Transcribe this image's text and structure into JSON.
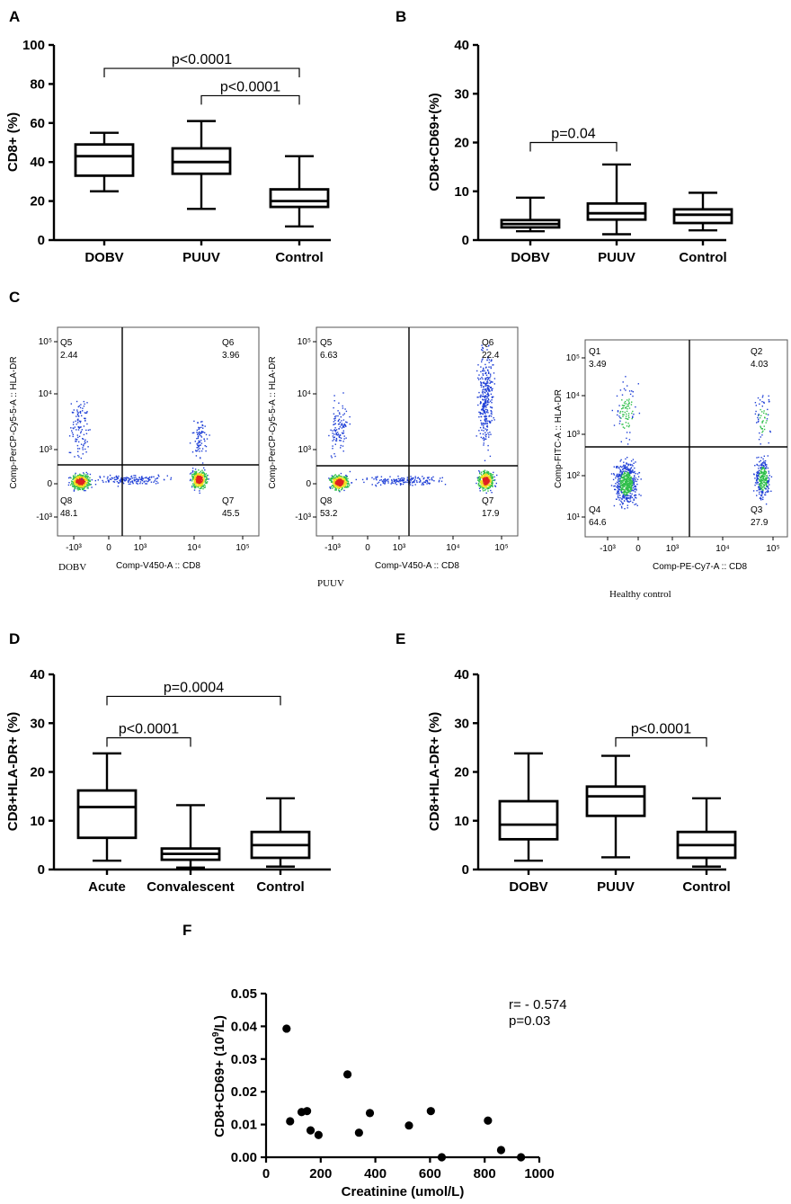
{
  "figure": {
    "panel_letters": [
      "A",
      "B",
      "C",
      "D",
      "E",
      "F"
    ],
    "colors": {
      "ink": "#000000",
      "dot_blue": "#1f3fd6",
      "dot_green": "#2fbf4a",
      "dot_red": "#e02020",
      "dot_yellow": "#f0e020"
    }
  },
  "chart_data": [
    {
      "id": "A",
      "type": "box",
      "ylabel": "CD8+ (%)",
      "ylim": [
        0,
        100
      ],
      "yticks": [
        0,
        20,
        40,
        60,
        80,
        100
      ],
      "categories": [
        "DOBV",
        "PUUV",
        "Control"
      ],
      "boxes": [
        {
          "min": 25,
          "q1": 33,
          "median": 43,
          "q3": 49,
          "max": 55
        },
        {
          "min": 16,
          "q1": 34,
          "median": 40,
          "q3": 47,
          "max": 61
        },
        {
          "min": 7,
          "q1": 17,
          "median": 20,
          "q3": 26,
          "max": 43
        }
      ],
      "comparisons": [
        {
          "from": 0,
          "to": 2,
          "level": 88,
          "label": "p<0.0001"
        },
        {
          "from": 1,
          "to": 2,
          "level": 74,
          "label": "p<0.0001"
        }
      ]
    },
    {
      "id": "B",
      "type": "box",
      "ylabel": "CD8+CD69+(%)",
      "ylim": [
        0,
        40
      ],
      "yticks": [
        0,
        10,
        20,
        30,
        40
      ],
      "categories": [
        "DOBV",
        "PUUV",
        "Control"
      ],
      "boxes": [
        {
          "min": 1.8,
          "q1": 2.6,
          "median": 3.3,
          "q3": 4.1,
          "max": 8.7
        },
        {
          "min": 1.2,
          "q1": 4.2,
          "median": 5.5,
          "q3": 7.5,
          "max": 15.5
        },
        {
          "min": 2.0,
          "q1": 3.5,
          "median": 5.2,
          "q3": 6.3,
          "max": 9.7
        }
      ],
      "comparisons": [
        {
          "from": 0,
          "to": 1,
          "level": 20,
          "label": "p=0.04"
        }
      ]
    },
    {
      "id": "D",
      "type": "box",
      "ylabel": "CD8+HLA-DR+ (%)",
      "ylim": [
        0,
        40
      ],
      "yticks": [
        0,
        10,
        20,
        30,
        40
      ],
      "categories": [
        "Acute",
        "Convalescent",
        "Control"
      ],
      "boxes": [
        {
          "min": 1.8,
          "q1": 6.5,
          "median": 12.8,
          "q3": 16.2,
          "max": 23.8
        },
        {
          "min": 0.4,
          "q1": 2.0,
          "median": 3.2,
          "q3": 4.3,
          "max": 13.2
        },
        {
          "min": 0.6,
          "q1": 2.4,
          "median": 5.0,
          "q3": 7.7,
          "max": 14.6
        }
      ],
      "comparisons": [
        {
          "from": 0,
          "to": 2,
          "level": 35.5,
          "label": "p=0.0004"
        },
        {
          "from": 0,
          "to": 1,
          "level": 27,
          "label": "p<0.0001"
        }
      ]
    },
    {
      "id": "E",
      "type": "box",
      "ylabel": "CD8+HLA-DR+ (%)",
      "ylim": [
        0,
        40
      ],
      "yticks": [
        0,
        10,
        20,
        30,
        40
      ],
      "categories": [
        "DOBV",
        "PUUV",
        "Control"
      ],
      "boxes": [
        {
          "min": 1.8,
          "q1": 6.2,
          "median": 9.2,
          "q3": 14.0,
          "max": 23.8
        },
        {
          "min": 2.5,
          "q1": 11.0,
          "median": 15.0,
          "q3": 17.0,
          "max": 23.3
        },
        {
          "min": 0.6,
          "q1": 2.4,
          "median": 5.0,
          "q3": 7.7,
          "max": 14.6
        }
      ],
      "comparisons": [
        {
          "from": 1,
          "to": 2,
          "level": 27,
          "label": "p<0.0001"
        }
      ]
    },
    {
      "id": "F",
      "type": "scatter",
      "xlabel": "Creatinine (umol/L)",
      "ylabel_main": "CD8+CD69+ (10",
      "ylabel_sup": "9",
      "ylabel_end": "/L)",
      "xlim": [
        0,
        1000
      ],
      "xticks": [
        0,
        200,
        400,
        600,
        800,
        1000
      ],
      "ylim": [
        0,
        0.05
      ],
      "yticks": [
        "0.00",
        "0.01",
        "0.02",
        "0.03",
        "0.04",
        "0.05"
      ],
      "annotation": [
        "r= - 0.574",
        "p=0.03"
      ],
      "points": [
        {
          "x": 75,
          "y": 0.0393
        },
        {
          "x": 88,
          "y": 0.011
        },
        {
          "x": 130,
          "y": 0.0138
        },
        {
          "x": 150,
          "y": 0.0141
        },
        {
          "x": 163,
          "y": 0.0082
        },
        {
          "x": 192,
          "y": 0.0068
        },
        {
          "x": 298,
          "y": 0.0253
        },
        {
          "x": 340,
          "y": 0.0075
        },
        {
          "x": 380,
          "y": 0.0135
        },
        {
          "x": 523,
          "y": 0.0097
        },
        {
          "x": 603,
          "y": 0.0141
        },
        {
          "x": 643,
          "y": 0.0
        },
        {
          "x": 812,
          "y": 0.0112
        },
        {
          "x": 860,
          "y": 0.0022
        },
        {
          "x": 933,
          "y": 0.0
        }
      ]
    },
    {
      "id": "C",
      "type": "flow-cytometry",
      "plots": [
        {
          "sample": "DOBV",
          "xlabel": "Comp-V450-A :: CD8",
          "ylabel": "Comp-PerCP-Cy5-5-A :: HLA-DR",
          "xticks": [
            "-10³",
            "0",
            "10³",
            "10⁴",
            "10⁵"
          ],
          "yticks": [
            "10⁵",
            "10⁴",
            "10³",
            "0",
            "-10³"
          ],
          "quadrants": [
            {
              "name": "Q5",
              "value": "2.44"
            },
            {
              "name": "Q6",
              "value": "3.96"
            },
            {
              "name": "Q8",
              "value": "48.1"
            },
            {
              "name": "Q7",
              "value": "45.5"
            }
          ]
        },
        {
          "sample": "PUUV",
          "xlabel": "Comp-V450-A :: CD8",
          "ylabel": "Comp-PerCP-Cy5-5-A :: HLA-DR",
          "xticks": [
            "-10³",
            "0",
            "10³",
            "10⁴",
            "10⁵"
          ],
          "yticks": [
            "10⁵",
            "10⁴",
            "10³",
            "0",
            "-10³"
          ],
          "quadrants": [
            {
              "name": "Q5",
              "value": "6.63"
            },
            {
              "name": "Q6",
              "value": "22.4"
            },
            {
              "name": "Q8",
              "value": "53.2"
            },
            {
              "name": "Q7",
              "value": "17.9"
            }
          ]
        },
        {
          "sample": "Healthy control",
          "xlabel": "Comp-PE-Cy7-A :: CD8",
          "ylabel": "Comp-FITC-A :: HLA-DR",
          "xticks": [
            "-10³",
            "0",
            "10³",
            "10⁴",
            "10⁵"
          ],
          "yticks": [
            "10⁵",
            "10⁴",
            "10³",
            "10²",
            "10¹"
          ],
          "quadrants": [
            {
              "name": "Q1",
              "value": "3.49"
            },
            {
              "name": "Q2",
              "value": "4.03"
            },
            {
              "name": "Q4",
              "value": "64.6"
            },
            {
              "name": "Q3",
              "value": "27.9"
            }
          ]
        }
      ]
    }
  ]
}
